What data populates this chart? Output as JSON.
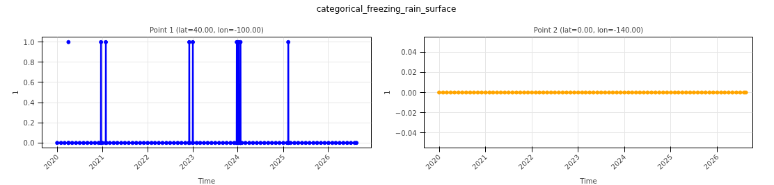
{
  "chart_data": [
    {
      "type": "line",
      "title": "Point 1 (lat=40.00, lon=-100.00)",
      "annotations": [
        "categorical_freezing_rain_surface"
      ],
      "xlabel": "Time",
      "ylabel": "1",
      "grid": true,
      "marker": "circle",
      "line_style": "solid",
      "xlim": [
        "2019-09-01",
        "2026-12-13"
      ],
      "ylim": [
        -0.05,
        1.05
      ],
      "xticks": [
        {
          "value": "2020-01-01",
          "label": "2020"
        },
        {
          "value": "2021-01-01",
          "label": "2021"
        },
        {
          "value": "2022-01-01",
          "label": "2022"
        },
        {
          "value": "2023-01-01",
          "label": "2023"
        },
        {
          "value": "2024-01-01",
          "label": "2024"
        },
        {
          "value": "2025-01-01",
          "label": "2025"
        },
        {
          "value": "2026-01-01",
          "label": "2026"
        }
      ],
      "yticks": [
        {
          "value": 0,
          "label": "0.0"
        },
        {
          "value": 0.2,
          "label": "0.2"
        },
        {
          "value": 0.4,
          "label": "0.4"
        },
        {
          "value": 0.6,
          "label": "0.6"
        },
        {
          "value": 0.8,
          "label": "0.8"
        },
        {
          "value": 1,
          "label": "1.0"
        }
      ],
      "series": [
        {
          "color": "#0000ff",
          "x": [
            "2020-01-01",
            "2020-02-01",
            "2020-03-01",
            "2020-03-31",
            "2020-03-31T23:00",
            "2020-04-01",
            "2020-04-01T01:00",
            "2020-04-02",
            "2020-05-01",
            "2020-06-01",
            "2020-07-01",
            "2020-08-01",
            "2020-09-01",
            "2020-10-01",
            "2020-11-01",
            "2020-12-01",
            "2020-12-19",
            "2020-12-20",
            "2020-12-21",
            "2021-01-01",
            "2021-01-27",
            "2021-01-28",
            "2021-01-29",
            "2021-02-01",
            "2021-03-01",
            "2021-04-01",
            "2021-05-01",
            "2021-06-01",
            "2021-07-01",
            "2021-08-01",
            "2021-09-01",
            "2021-10-01",
            "2021-11-01",
            "2021-12-01",
            "2022-01-01",
            "2022-02-01",
            "2022-03-01",
            "2022-04-01",
            "2022-05-01",
            "2022-06-01",
            "2022-07-01",
            "2022-08-01",
            "2022-09-01",
            "2022-10-01",
            "2022-11-01",
            "2022-12-01",
            "2022-12-02",
            "2022-12-03",
            "2022-12-04",
            "2022-12-31",
            "2023-01-01",
            "2023-01-02",
            "2023-02-01",
            "2023-03-01",
            "2023-04-01",
            "2023-05-01",
            "2023-06-01",
            "2023-07-01",
            "2023-08-01",
            "2023-09-01",
            "2023-10-01",
            "2023-11-01",
            "2023-12-01",
            "2023-12-21",
            "2023-12-22",
            "2023-12-23",
            "2023-12-29",
            "2023-12-30",
            "2023-12-31",
            "2024-01-05",
            "2024-01-06",
            "2024-01-07",
            "2024-01-20",
            "2024-01-21",
            "2024-01-22",
            "2024-02-01",
            "2024-03-01",
            "2024-04-01",
            "2024-05-01",
            "2024-06-01",
            "2024-07-01",
            "2024-08-01",
            "2024-09-01",
            "2024-10-01",
            "2024-11-01",
            "2024-12-01",
            "2025-01-01",
            "2025-02-01",
            "2025-02-09",
            "2025-02-10",
            "2025-02-11",
            "2025-03-01",
            "2025-04-01",
            "2025-05-01",
            "2025-06-01",
            "2025-07-01",
            "2025-08-01",
            "2025-09-01",
            "2025-10-01",
            "2025-11-01",
            "2025-12-01",
            "2026-01-01",
            "2026-02-01",
            "2026-03-01",
            "2026-04-01",
            "2026-05-01",
            "2026-06-01",
            "2026-07-01",
            "2026-08-01",
            "2026-08-15"
          ],
          "values": [
            0,
            0,
            0,
            0,
            null,
            1,
            null,
            0,
            0,
            0,
            0,
            0,
            0,
            0,
            0,
            0,
            0,
            1,
            0,
            0,
            0,
            1,
            0,
            0,
            0,
            0,
            0,
            0,
            0,
            0,
            0,
            0,
            0,
            0,
            0,
            0,
            0,
            0,
            0,
            0,
            0,
            0,
            0,
            0,
            0,
            0,
            0,
            1,
            0,
            0,
            1,
            0,
            0,
            0,
            0,
            0,
            0,
            0,
            0,
            0,
            0,
            0,
            0,
            0,
            1,
            0,
            0,
            1,
            0,
            0,
            1,
            0,
            0,
            1,
            0,
            0,
            0,
            0,
            0,
            0,
            0,
            0,
            0,
            0,
            0,
            0,
            0,
            0,
            0,
            1,
            0,
            0,
            0,
            0,
            0,
            0,
            0,
            0,
            0,
            0,
            0,
            0,
            0,
            0,
            0,
            0,
            0,
            0,
            0,
            0
          ]
        }
      ]
    },
    {
      "type": "line",
      "title": "Point 2 (lat=0.00, lon=-140.00)",
      "xlabel": "Time",
      "ylabel": "1",
      "grid": true,
      "marker": "circle",
      "line_style": "solid",
      "xlim": [
        "2019-09-05",
        "2026-10-08"
      ],
      "ylim": [
        -0.055,
        0.055
      ],
      "xticks": [
        {
          "value": "2020-01-01",
          "label": "2020"
        },
        {
          "value": "2021-01-01",
          "label": "2021"
        },
        {
          "value": "2022-01-01",
          "label": "2022"
        },
        {
          "value": "2023-01-01",
          "label": "2023"
        },
        {
          "value": "2024-01-01",
          "label": "2024"
        },
        {
          "value": "2025-01-01",
          "label": "2025"
        },
        {
          "value": "2026-01-01",
          "label": "2026"
        }
      ],
      "yticks": [
        {
          "value": -0.04,
          "label": "−0.04"
        },
        {
          "value": -0.02,
          "label": "−0.02"
        },
        {
          "value": 0,
          "label": "0.00"
        },
        {
          "value": 0.02,
          "label": "0.02"
        },
        {
          "value": 0.04,
          "label": "0.04"
        }
      ],
      "series": [
        {
          "color": "#ffa500",
          "x": [
            "2020-01-01",
            "2020-02-01",
            "2020-03-01",
            "2020-04-01",
            "2020-05-01",
            "2020-06-01",
            "2020-07-01",
            "2020-08-01",
            "2020-09-01",
            "2020-10-01",
            "2020-11-01",
            "2020-12-01",
            "2021-01-01",
            "2021-02-01",
            "2021-03-01",
            "2021-04-01",
            "2021-05-01",
            "2021-06-01",
            "2021-07-01",
            "2021-08-01",
            "2021-09-01",
            "2021-10-01",
            "2021-11-01",
            "2021-12-01",
            "2022-01-01",
            "2022-02-01",
            "2022-03-01",
            "2022-04-01",
            "2022-05-01",
            "2022-06-01",
            "2022-07-01",
            "2022-08-01",
            "2022-09-01",
            "2022-10-01",
            "2022-11-01",
            "2022-12-01",
            "2023-01-01",
            "2023-02-01",
            "2023-03-01",
            "2023-04-01",
            "2023-05-01",
            "2023-06-01",
            "2023-07-01",
            "2023-08-01",
            "2023-09-01",
            "2023-10-01",
            "2023-11-01",
            "2023-12-01",
            "2024-01-01",
            "2024-02-01",
            "2024-03-01",
            "2024-04-01",
            "2024-05-01",
            "2024-06-01",
            "2024-07-01",
            "2024-08-01",
            "2024-09-01",
            "2024-10-01",
            "2024-11-01",
            "2024-12-01",
            "2025-01-01",
            "2025-02-01",
            "2025-03-01",
            "2025-04-01",
            "2025-05-01",
            "2025-06-01",
            "2025-07-01",
            "2025-08-01",
            "2025-09-01",
            "2025-10-01",
            "2025-11-01",
            "2025-12-01",
            "2026-01-01",
            "2026-02-01",
            "2026-03-01",
            "2026-04-01",
            "2026-05-01",
            "2026-06-01",
            "2026-07-01",
            "2026-08-01",
            "2026-08-15"
          ],
          "values": [
            0,
            0,
            0,
            0,
            0,
            0,
            0,
            0,
            0,
            0,
            0,
            0,
            0,
            0,
            0,
            0,
            0,
            0,
            0,
            0,
            0,
            0,
            0,
            0,
            0,
            0,
            0,
            0,
            0,
            0,
            0,
            0,
            0,
            0,
            0,
            0,
            0,
            0,
            0,
            0,
            0,
            0,
            0,
            0,
            0,
            0,
            0,
            0,
            0,
            0,
            0,
            0,
            0,
            0,
            0,
            0,
            0,
            0,
            0,
            0,
            0,
            0,
            0,
            0,
            0,
            0,
            0,
            0,
            0,
            0,
            0,
            0,
            0,
            0,
            0,
            0,
            0,
            0,
            0,
            0,
            0
          ]
        }
      ]
    }
  ]
}
